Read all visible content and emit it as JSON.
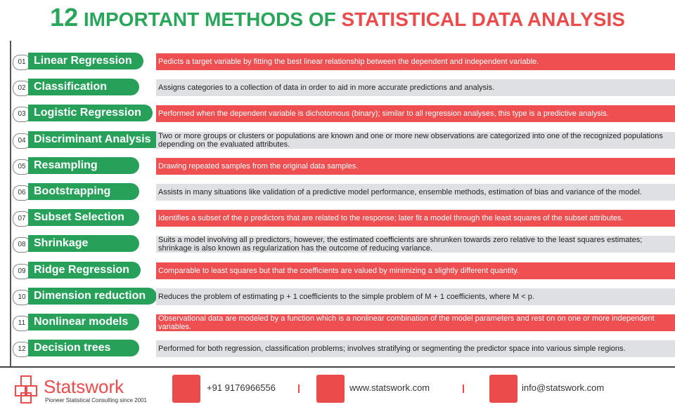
{
  "header": {
    "number": "12",
    "title_green": "IMPORTANT METHODS OF",
    "title_red": "STATISTICAL DATA ANALYSIS"
  },
  "methods": [
    {
      "number": "01",
      "name": "Linear Regression",
      "description": "Pedicts a target variable by fitting the best linear relationship between the dependent and independent variable."
    },
    {
      "number": "02",
      "name": "Classification",
      "description": "Assigns categories to a collection of data in order to aid in more accurate predictions and analysis."
    },
    {
      "number": "03",
      "name": "Logistic Regression",
      "description": "Performed when the dependent variable is dichotomous (binary); similar to all regression analyses, this type is a predictive analysis."
    },
    {
      "number": "04",
      "name": "Discriminant Analysis",
      "description": "Two or more groups or clusters or populations are known and one or more new observations are categorized into one of the recognized populations depending on the evaluated attributes."
    },
    {
      "number": "05",
      "name": "Resampling",
      "description": "Drawing repeated samples from the original data samples."
    },
    {
      "number": "06",
      "name": "Bootstrapping",
      "description": "Assists in many situations like validation of a predictive model performance, ensemble methods, estimation of bias and variance of the model."
    },
    {
      "number": "07",
      "name": "Subset Selection",
      "description": "Identifies a subset of the p predictors that are related to the response; later fit a model through the least squares of the subset attributes."
    },
    {
      "number": "08",
      "name": "Shrinkage",
      "description": "Suits a model involving all p predictors, however, the estimated coefficients are shrunken towards zero relative to the least squares estimates; shrinkage is also known as regularization has the outcome of reducing variance."
    },
    {
      "number": "09",
      "name": "Ridge Regression",
      "description": "Comparable to least squares but that the coefficients are valued by minimizing a slightly different quantity."
    },
    {
      "number": "10",
      "name": "Dimension reduction",
      "description": "Reduces the problem of estimating p + 1 coefficients to the simple problem of M + 1 coefficients, where M < p."
    },
    {
      "number": "11",
      "name": "Nonlinear models",
      "description": "Observational data are modeled by a function which is a nonlinear combination of the model parameters and rest on on one or more independent variables."
    },
    {
      "number": "12",
      "name": "Decision trees",
      "description": "Performed for both regression, classification problems; involves stratifying or segmenting the predictor space into various simple regions."
    }
  ],
  "footer": {
    "brand": "Statswork",
    "tagline": "Pioneer Statistical Consulting since 2001",
    "phone": "+91 9176966556",
    "website": "www.statswork.com",
    "email": "info@statswork.com"
  }
}
